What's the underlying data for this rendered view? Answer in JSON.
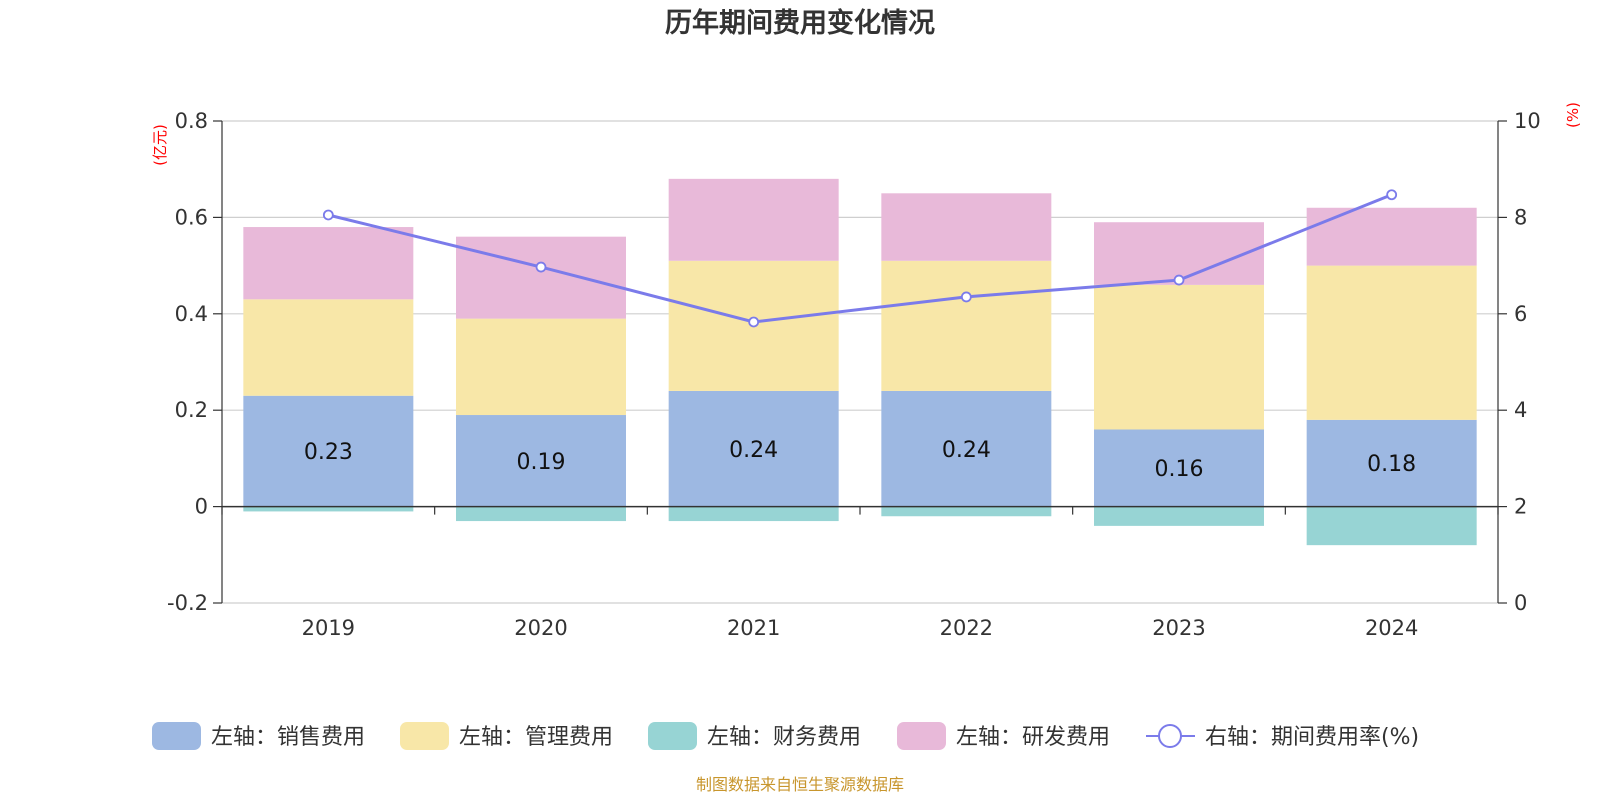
{
  "chart_data": {
    "type": "bar",
    "title": "历年期间费用变化情况",
    "categories": [
      "2019",
      "2020",
      "2021",
      "2022",
      "2023",
      "2024"
    ],
    "left_axis": {
      "unit": "(亿元)",
      "ylim": [
        -0.2,
        0.8
      ],
      "ticks": [
        0.8,
        0.6,
        0.4,
        0.2,
        0,
        -0.2
      ],
      "tick_labels": [
        "0.8",
        "0.6",
        "0.4",
        "0.2",
        "0",
        "-0.2"
      ]
    },
    "right_axis": {
      "unit": "(%)",
      "ylim": [
        0,
        10
      ],
      "ticks": [
        10,
        8,
        6,
        4,
        2,
        0
      ],
      "tick_labels": [
        "10",
        "8",
        "6",
        "4",
        "2",
        "0"
      ]
    },
    "series": [
      {
        "name": "左轴：销售费用",
        "type": "bar",
        "axis": "left",
        "color": "#9db8e2",
        "values": [
          0.23,
          0.19,
          0.24,
          0.24,
          0.16,
          0.18
        ],
        "labels": [
          "0.23",
          "0.19",
          "0.24",
          "0.24",
          "0.16",
          "0.18"
        ]
      },
      {
        "name": "左轴：管理费用",
        "type": "bar",
        "axis": "left",
        "color": "#f8e7a8",
        "values": [
          0.2,
          0.2,
          0.27,
          0.27,
          0.3,
          0.32
        ]
      },
      {
        "name": "左轴：财务费用",
        "type": "bar",
        "axis": "left",
        "color": "#97d4d4",
        "values": [
          -0.01,
          -0.03,
          -0.03,
          -0.02,
          -0.04,
          -0.08
        ]
      },
      {
        "name": "左轴：研发费用",
        "type": "bar",
        "axis": "left",
        "color": "#e8b9d9",
        "values": [
          0.15,
          0.17,
          0.17,
          0.14,
          0.13,
          0.12
        ]
      },
      {
        "name": "右轴：期间费用率(%)",
        "type": "line",
        "axis": "right",
        "color": "#7b7bea",
        "values": [
          8.05,
          6.97,
          5.83,
          6.35,
          6.7,
          8.47
        ]
      }
    ],
    "grid": true,
    "legend_position": "bottom"
  },
  "source_note": "制图数据来自恒生聚源数据库"
}
